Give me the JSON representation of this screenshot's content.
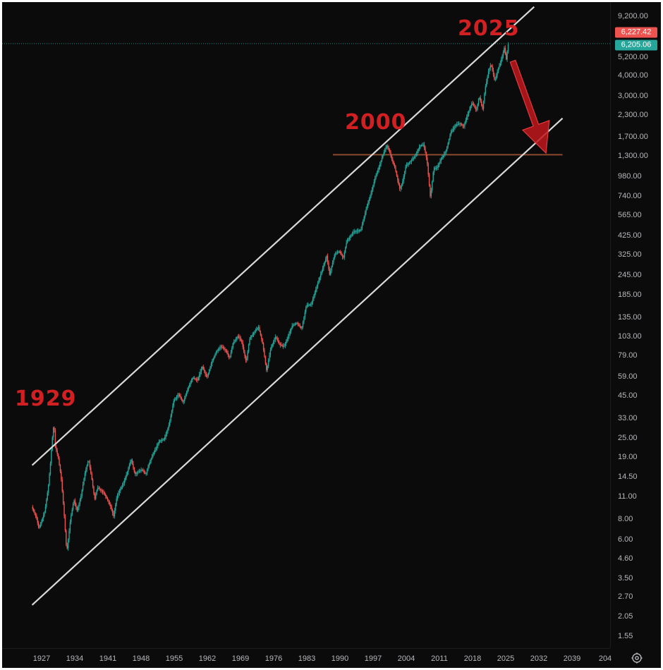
{
  "chart_data": {
    "type": "candlestick",
    "scale": "log",
    "grid": false,
    "colors": {
      "up": "#26a69a",
      "down": "#ef5350",
      "background": "#0b0b0c",
      "channel": "#d9d9d9",
      "support": "#8b4a2b",
      "arrow": "#c0181d",
      "last_close_tag": "#26a69a",
      "prior_tag": "#ef5350"
    },
    "y_ticks": [
      "9,200.00",
      "5,200.00",
      "4,000.00",
      "3,000.00",
      "2,300.00",
      "1,700.00",
      "1,300.00",
      "980.00",
      "740.00",
      "565.00",
      "425.00",
      "325.00",
      "245.00",
      "185.00",
      "135.00",
      "103.00",
      "79.00",
      "59.00",
      "45.00",
      "33.00",
      "25.00",
      "19.00",
      "14.50",
      "11.00",
      "8.00",
      "6.00",
      "4.60",
      "3.50",
      "2.70",
      "2.05",
      "1.55"
    ],
    "x_ticks": [
      "1927",
      "1934",
      "1941",
      "1948",
      "1955",
      "1962",
      "1969",
      "1976",
      "1983",
      "1990",
      "1997",
      "2004",
      "2011",
      "2018",
      "2025",
      "2032",
      "2039",
      "204"
    ],
    "price_tags": [
      {
        "label": "6,227.42",
        "value": 6227.42,
        "color": "#ef5350"
      },
      {
        "label": "6,205.06",
        "value": 6205.06,
        "color": "#26a69a"
      }
    ],
    "annotations": [
      {
        "text": "1929",
        "year": 1929
      },
      {
        "text": "2000",
        "year": 2000
      },
      {
        "text": "2025",
        "year": 2025
      }
    ],
    "price_path": [
      [
        1925.0,
        9.5
      ],
      [
        1926.0,
        8.2
      ],
      [
        1926.5,
        7.0
      ],
      [
        1927.0,
        7.6
      ],
      [
        1927.8,
        9.0
      ],
      [
        1928.5,
        12.5
      ],
      [
        1929.0,
        18.0
      ],
      [
        1929.3,
        24.0
      ],
      [
        1929.7,
        31.0
      ],
      [
        1930.0,
        22.0
      ],
      [
        1930.6,
        19.0
      ],
      [
        1931.2,
        14.5
      ],
      [
        1931.8,
        9.0
      ],
      [
        1932.4,
        5.0
      ],
      [
        1933.2,
        8.0
      ],
      [
        1933.9,
        10.5
      ],
      [
        1934.6,
        9.0
      ],
      [
        1935.4,
        11.0
      ],
      [
        1936.2,
        15.0
      ],
      [
        1937.0,
        18.5
      ],
      [
        1937.7,
        14.0
      ],
      [
        1938.3,
        10.5
      ],
      [
        1938.9,
        12.5
      ],
      [
        1939.6,
        12.0
      ],
      [
        1940.3,
        11.5
      ],
      [
        1941.0,
        10.5
      ],
      [
        1941.7,
        9.5
      ],
      [
        1942.3,
        8.3
      ],
      [
        1943.0,
        11.0
      ],
      [
        1943.6,
        12.0
      ],
      [
        1944.3,
        13.0
      ],
      [
        1945.2,
        15.5
      ],
      [
        1946.0,
        18.5
      ],
      [
        1946.8,
        15.0
      ],
      [
        1947.5,
        15.5
      ],
      [
        1948.3,
        16.0
      ],
      [
        1949.1,
        15.0
      ],
      [
        1950.0,
        18.0
      ],
      [
        1951.0,
        21.0
      ],
      [
        1952.0,
        24.0
      ],
      [
        1953.0,
        24.5
      ],
      [
        1954.0,
        30.0
      ],
      [
        1955.0,
        42.0
      ],
      [
        1956.0,
        46.0
      ],
      [
        1957.0,
        41.0
      ],
      [
        1958.0,
        50.0
      ],
      [
        1959.0,
        58.0
      ],
      [
        1960.0,
        56.0
      ],
      [
        1961.0,
        68.0
      ],
      [
        1962.0,
        58.0
      ],
      [
        1963.0,
        72.0
      ],
      [
        1964.0,
        84.0
      ],
      [
        1965.0,
        90.0
      ],
      [
        1966.0,
        85.0
      ],
      [
        1966.8,
        76.0
      ],
      [
        1967.5,
        94.0
      ],
      [
        1968.5,
        104.0
      ],
      [
        1969.3,
        97.0
      ],
      [
        1970.3,
        72.0
      ],
      [
        1971.0,
        100.0
      ],
      [
        1972.0,
        110.0
      ],
      [
        1972.9,
        118.0
      ],
      [
        1973.7,
        96.0
      ],
      [
        1974.6,
        64.0
      ],
      [
        1975.5,
        88.0
      ],
      [
        1976.5,
        103.0
      ],
      [
        1977.4,
        92.0
      ],
      [
        1978.3,
        90.0
      ],
      [
        1979.2,
        104.0
      ],
      [
        1980.0,
        120.0
      ],
      [
        1981.0,
        125.0
      ],
      [
        1982.0,
        115.0
      ],
      [
        1983.0,
        160.0
      ],
      [
        1984.0,
        162.0
      ],
      [
        1985.0,
        200.0
      ],
      [
        1986.0,
        245.0
      ],
      [
        1987.3,
        320.0
      ],
      [
        1987.9,
        245.0
      ],
      [
        1989.0,
        330.0
      ],
      [
        1990.0,
        340.0
      ],
      [
        1990.8,
        310.0
      ],
      [
        1991.5,
        390.0
      ],
      [
        1993.0,
        450.0
      ],
      [
        1994.5,
        460.0
      ],
      [
        1995.5,
        600.0
      ],
      [
        1996.5,
        740.0
      ],
      [
        1997.5,
        950.0
      ],
      [
        1998.5,
        1150.0
      ],
      [
        1999.5,
        1400.0
      ],
      [
        2000.0,
        1500.0
      ],
      [
        2000.5,
        1400.0
      ],
      [
        2001.0,
        1250.0
      ],
      [
        2001.7,
        1100.0
      ],
      [
        2002.7,
        820.0
      ],
      [
        2003.2,
        870.0
      ],
      [
        2004.0,
        1130.0
      ],
      [
        2005.0,
        1200.0
      ],
      [
        2006.0,
        1300.0
      ],
      [
        2007.0,
        1500.0
      ],
      [
        2007.8,
        1520.0
      ],
      [
        2008.5,
        1200.0
      ],
      [
        2009.2,
        720.0
      ],
      [
        2009.9,
        1100.0
      ],
      [
        2010.6,
        1100.0
      ],
      [
        2011.5,
        1250.0
      ],
      [
        2012.5,
        1400.0
      ],
      [
        2013.5,
        1800.0
      ],
      [
        2014.5,
        2000.0
      ],
      [
        2015.5,
        2050.0
      ],
      [
        2016.2,
        1950.0
      ],
      [
        2017.0,
        2300.0
      ],
      [
        2018.0,
        2750.0
      ],
      [
        2018.9,
        2450.0
      ],
      [
        2019.5,
        3000.0
      ],
      [
        2020.2,
        2500.0
      ],
      [
        2020.8,
        3400.0
      ],
      [
        2021.5,
        4300.0
      ],
      [
        2022.0,
        4700.0
      ],
      [
        2022.8,
        3700.0
      ],
      [
        2023.5,
        4400.0
      ],
      [
        2024.0,
        4800.0
      ],
      [
        2024.8,
        5900.0
      ],
      [
        2025.2,
        5000.0
      ],
      [
        2025.6,
        6205.06
      ]
    ],
    "channel_upper": [
      [
        1925.0,
        17.0
      ],
      [
        2031.0,
        10500.0
      ]
    ],
    "channel_lower": [
      [
        1925.0,
        2.4
      ],
      [
        2037.0,
        2200.0
      ]
    ],
    "support_line": {
      "value": 1320,
      "from": 1988.5,
      "to": 2037
    },
    "arrow": {
      "from": [
        2026.5,
        4900
      ],
      "to": [
        2033.5,
        1350
      ]
    }
  }
}
